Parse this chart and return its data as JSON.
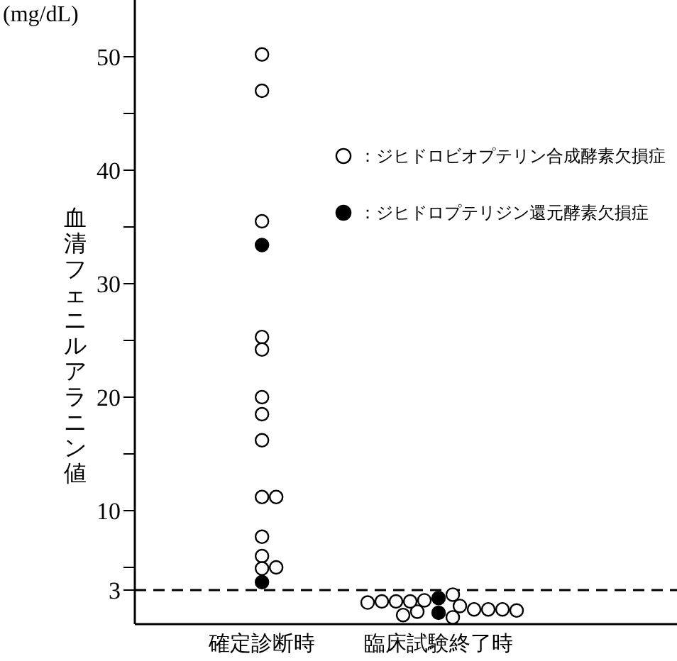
{
  "chart_data": {
    "type": "scatter",
    "ylabel": "血清フェニルアラニン値",
    "annotations": [
      "(mg/dL)"
    ],
    "categories": [
      "確定診断時",
      "臨床試験終了時"
    ],
    "series": [
      {
        "name": "：ジヒドロビオプテリン合成酵素欠損症",
        "color": "#ffffff",
        "x": [
          "確定診断時",
          "確定診断時",
          "確定診断時",
          "確定診断時",
          "確定診断時",
          "確定診断時",
          "確定診断時",
          "確定診断時",
          "確定診断時",
          "確定診断時",
          "確定診断時",
          "確定診断時",
          "確定診断時",
          "確定診断時",
          "臨床試験終了時",
          "臨床試験終了時",
          "臨床試験終了時",
          "臨床試験終了時",
          "臨床試験終了時",
          "臨床試験終了時",
          "臨床試験終了時",
          "臨床試験終了時",
          "臨床試験終了時",
          "臨床試験終了時",
          "臨床試験終了時",
          "臨床試験終了時",
          "臨床試験終了時",
          "臨床試験終了時"
        ],
        "values": [
          50.2,
          47,
          35.5,
          25.3,
          24.2,
          20,
          18.5,
          16.2,
          11.2,
          11.2,
          7.7,
          6,
          4.9,
          5,
          2.6,
          2.1,
          1.6,
          1.1,
          0.6,
          2,
          1.3,
          2,
          1.3,
          2,
          1.3,
          1.9,
          1.2,
          0.8
        ]
      },
      {
        "name": "：ジヒドロプテリジン還元酵素欠損症",
        "color": "#000000",
        "x": [
          "確定診断時",
          "確定診断時",
          "臨床試験終了時",
          "臨床試験終了時"
        ],
        "values": [
          33.4,
          3.7,
          2.3,
          1
        ]
      }
    ],
    "ylim": [
      0,
      55
    ],
    "yticks": [
      3,
      {
        "value": 5,
        "label": null
      },
      10,
      {
        "value": 15,
        "label": null
      },
      20,
      {
        "value": 25,
        "label": null
      },
      30,
      {
        "value": 35,
        "label": null
      },
      40,
      {
        "value": 45,
        "label": null
      },
      50
    ],
    "ref_lines": [
      {
        "axis": "y",
        "value": 3,
        "line_style": "dashed",
        "color": "#000000"
      }
    ],
    "legend": "top right",
    "marker": "circle",
    "grid": false
  }
}
